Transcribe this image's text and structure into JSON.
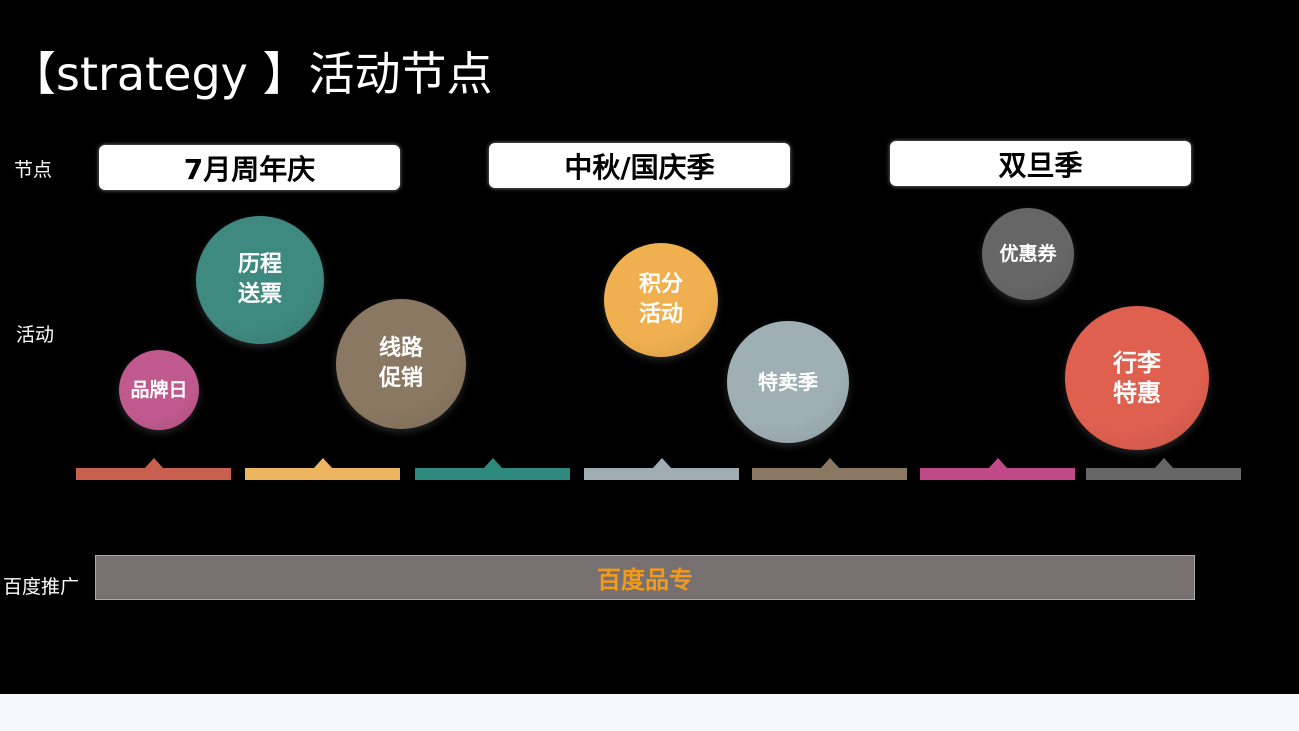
{
  "title": "【strategy 】活动节点",
  "labels": {
    "nodes": "节点",
    "activities": "活动",
    "promotion": "百度推广"
  },
  "nodes": [
    "7月周年庆",
    "中秋/国庆季",
    "双旦季"
  ],
  "activities": [
    {
      "text": "品牌日",
      "color": "#c05a8e"
    },
    {
      "text": "历程\n送票",
      "color": "#3f8a80"
    },
    {
      "text": "线路\n促销",
      "color": "#8a7862"
    },
    {
      "text": "积分\n活动",
      "color": "#f0b050"
    },
    {
      "text": "特卖季",
      "color": "#9fb0b5"
    },
    {
      "text": "优惠券",
      "color": "#666666"
    },
    {
      "text": "行李\n特惠",
      "color": "#e06050"
    }
  ],
  "timeline_colors": [
    "#c9604f",
    "#eeb560",
    "#2f8a7e",
    "#a0adb3",
    "#8a7862",
    "#c04a88",
    "#666666"
  ],
  "promotion_bar": {
    "text": "百度品专",
    "text_color": "#f39a1a"
  }
}
